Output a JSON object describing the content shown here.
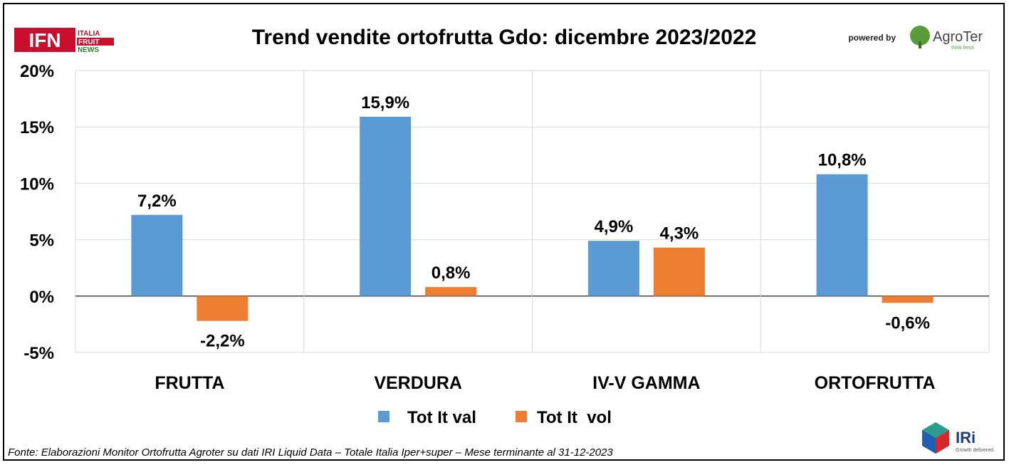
{
  "header": {
    "logo_ifn_text": "IFN",
    "logo_ifn_lines": [
      "ITALIA",
      "FRUIT",
      "NEWS"
    ],
    "powered_by": "powered by",
    "agroter_name": "AgroTer",
    "agroter_tagline": "think fresh",
    "iri_name": "IRi",
    "iri_tagline": "Growth delivered."
  },
  "footer": {
    "source": "Fonte: Elaborazioni Monitor Ortofrutta Agroter su dati IRI Liquid Data – Totale Italia Iper+super – Mese terminante al 31-12-2023"
  },
  "chart_data": {
    "type": "bar",
    "title": "Trend vendite ortofrutta Gdo: dicembre 2023/2022",
    "categories": [
      "FRUTTA",
      "VERDURA",
      "IV-V GAMMA",
      "ORTOFRUTTA"
    ],
    "series": [
      {
        "name": "Tot It val",
        "color": "#5B9BD5",
        "values": [
          7.2,
          15.9,
          4.9,
          10.8
        ],
        "labels": [
          "7,2%",
          "15,9%",
          "4,9%",
          "10,8%"
        ]
      },
      {
        "name": "Tot It  vol",
        "color": "#ED7D31",
        "values": [
          -2.2,
          0.8,
          4.3,
          -0.6
        ],
        "labels": [
          "-2,2%",
          "0,8%",
          "4,3%",
          "-0,6%"
        ]
      }
    ],
    "ylim": [
      -5,
      20
    ],
    "yticks": [
      -5,
      0,
      5,
      10,
      15,
      20
    ],
    "ytick_labels": [
      "-5%",
      "0%",
      "5%",
      "10%",
      "15%",
      "20%"
    ],
    "grid": true,
    "legend": "bottom"
  }
}
